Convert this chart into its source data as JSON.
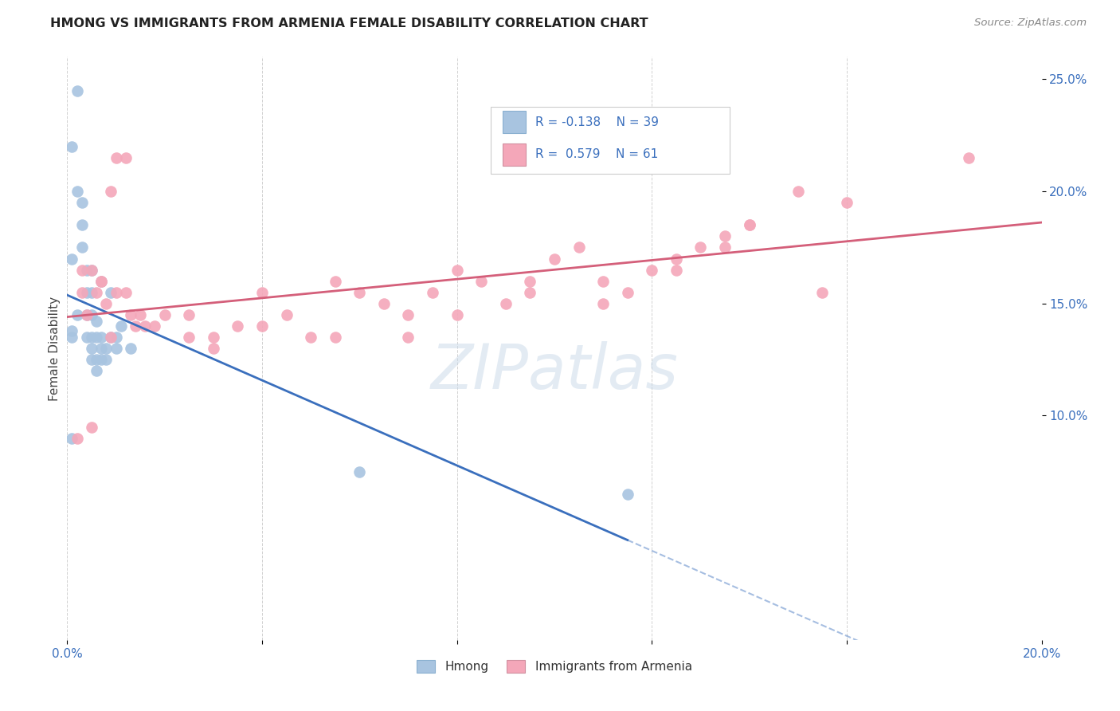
{
  "title": "HMONG VS IMMIGRANTS FROM ARMENIA FEMALE DISABILITY CORRELATION CHART",
  "source": "Source: ZipAtlas.com",
  "ylabel": "Female Disability",
  "xlim": [
    0.0,
    0.2
  ],
  "ylim": [
    0.0,
    0.26
  ],
  "xtick_positions": [
    0.0,
    0.04,
    0.08,
    0.12,
    0.16,
    0.2
  ],
  "xticklabels": [
    "0.0%",
    "",
    "",
    "",
    "",
    "20.0%"
  ],
  "yticks_right": [
    0.1,
    0.15,
    0.2,
    0.25
  ],
  "ytick_right_labels": [
    "10.0%",
    "15.0%",
    "20.0%",
    "25.0%"
  ],
  "hmong_color": "#a8c4e0",
  "armenia_color": "#f4a7b9",
  "hmong_line_color": "#3a6fbd",
  "armenia_line_color": "#d45f7a",
  "watermark": "ZIPatlas",
  "background_color": "#ffffff",
  "grid_color": "#cccccc",
  "hmong_x": [
    0.001,
    0.002,
    0.001,
    0.003,
    0.003,
    0.004,
    0.004,
    0.004,
    0.005,
    0.005,
    0.005,
    0.005,
    0.005,
    0.006,
    0.006,
    0.006,
    0.007,
    0.007,
    0.007,
    0.008,
    0.008,
    0.009,
    0.01,
    0.01,
    0.011,
    0.013,
    0.001,
    0.002,
    0.003,
    0.06,
    0.115,
    0.001,
    0.004,
    0.005,
    0.007,
    0.009,
    0.002,
    0.001,
    0.006
  ],
  "hmong_y": [
    0.22,
    0.245,
    0.135,
    0.185,
    0.175,
    0.155,
    0.145,
    0.135,
    0.155,
    0.145,
    0.135,
    0.13,
    0.125,
    0.135,
    0.125,
    0.12,
    0.135,
    0.13,
    0.125,
    0.13,
    0.125,
    0.135,
    0.135,
    0.13,
    0.14,
    0.13,
    0.09,
    0.2,
    0.195,
    0.075,
    0.065,
    0.17,
    0.165,
    0.165,
    0.16,
    0.155,
    0.145,
    0.138,
    0.142
  ],
  "armenia_x": [
    0.002,
    0.005,
    0.007,
    0.009,
    0.01,
    0.012,
    0.013,
    0.014,
    0.015,
    0.016,
    0.018,
    0.02,
    0.025,
    0.03,
    0.035,
    0.04,
    0.045,
    0.05,
    0.055,
    0.06,
    0.065,
    0.07,
    0.075,
    0.08,
    0.085,
    0.09,
    0.095,
    0.1,
    0.105,
    0.11,
    0.115,
    0.12,
    0.125,
    0.13,
    0.135,
    0.14,
    0.15,
    0.155,
    0.16,
    0.185,
    0.003,
    0.006,
    0.008,
    0.01,
    0.012,
    0.025,
    0.03,
    0.04,
    0.055,
    0.07,
    0.08,
    0.095,
    0.11,
    0.125,
    0.135,
    0.14,
    0.005,
    0.007,
    0.009,
    0.003,
    0.004
  ],
  "armenia_y": [
    0.09,
    0.165,
    0.16,
    0.135,
    0.215,
    0.215,
    0.145,
    0.14,
    0.145,
    0.14,
    0.14,
    0.145,
    0.145,
    0.135,
    0.14,
    0.155,
    0.145,
    0.135,
    0.16,
    0.155,
    0.15,
    0.145,
    0.155,
    0.165,
    0.16,
    0.15,
    0.16,
    0.17,
    0.175,
    0.16,
    0.155,
    0.165,
    0.17,
    0.175,
    0.18,
    0.185,
    0.2,
    0.155,
    0.195,
    0.215,
    0.165,
    0.155,
    0.15,
    0.155,
    0.155,
    0.135,
    0.13,
    0.14,
    0.135,
    0.135,
    0.145,
    0.155,
    0.15,
    0.165,
    0.175,
    0.185,
    0.095,
    0.16,
    0.2,
    0.155,
    0.145
  ],
  "hmong_R": -0.138,
  "armenia_R": 0.579,
  "hmong_N": 39,
  "armenia_N": 61
}
